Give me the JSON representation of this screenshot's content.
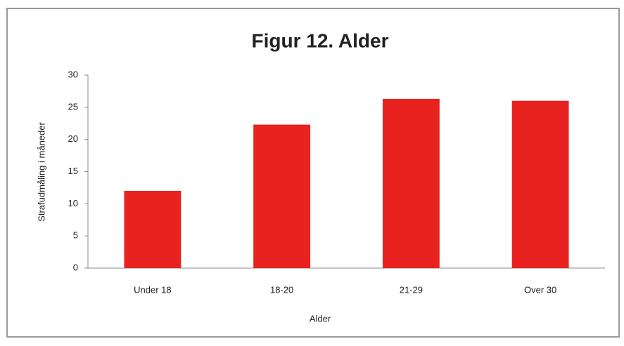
{
  "chart_data": {
    "type": "bar",
    "title": "Figur 12. Alder",
    "x_label": "Alder",
    "y_label": "Strafudmåling i måneder",
    "categories": [
      "Under 18",
      "18-20",
      "21-29",
      "Over 30"
    ],
    "values": [
      12,
      22.3,
      26.3,
      26
    ],
    "color": "#e8221e",
    "ylim": [
      0,
      30
    ],
    "yticks": [
      0,
      5,
      10,
      15,
      20,
      25,
      30
    ],
    "grid": false
  }
}
